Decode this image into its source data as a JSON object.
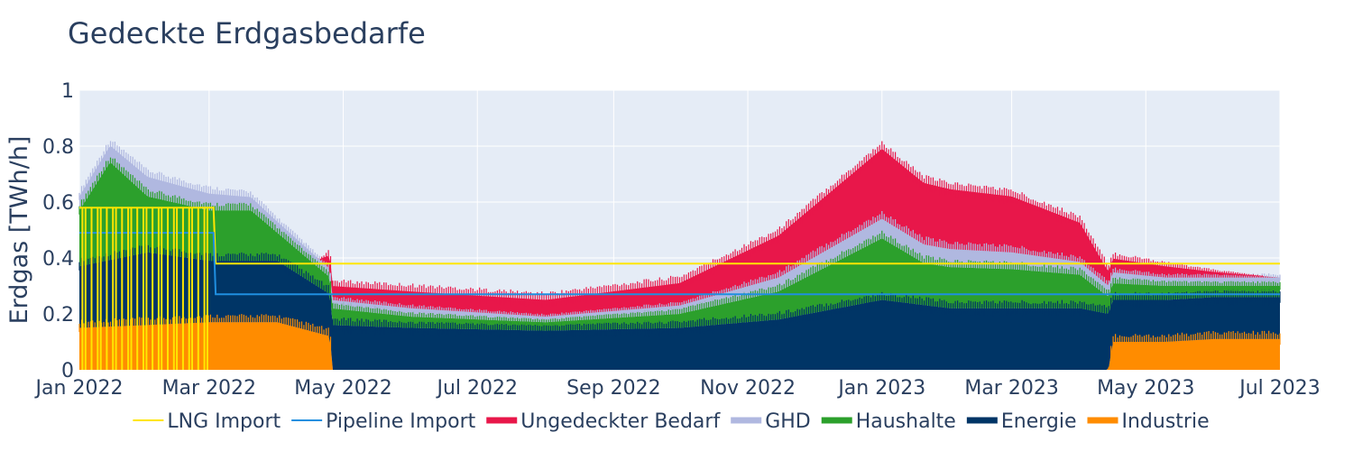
{
  "chart_data": {
    "type": "area",
    "title": "Gedeckte Erdgasbedarfe",
    "ylabel": "Erdgas [TWh/h]",
    "xlabel": "",
    "x_range": [
      "2022-01-01",
      "2023-07-01"
    ],
    "ylim": [
      0,
      1
    ],
    "x_ticks": [
      {
        "date": "2022-01-01",
        "label": "Jan 2022"
      },
      {
        "date": "2022-03-01",
        "label": "Mar 2022"
      },
      {
        "date": "2022-05-01",
        "label": "May 2022"
      },
      {
        "date": "2022-07-01",
        "label": "Jul 2022"
      },
      {
        "date": "2022-09-01",
        "label": "Sep 2022"
      },
      {
        "date": "2022-11-01",
        "label": "Nov 2022"
      },
      {
        "date": "2023-01-01",
        "label": "Jan 2023"
      },
      {
        "date": "2023-03-01",
        "label": "Mar 2023"
      },
      {
        "date": "2023-05-01",
        "label": "May 2023"
      },
      {
        "date": "2023-07-01",
        "label": "Jul 2023"
      }
    ],
    "y_ticks": [
      {
        "value": 0,
        "label": "0"
      },
      {
        "value": 0.2,
        "label": "0.2"
      },
      {
        "value": 0.4,
        "label": "0.4"
      },
      {
        "value": 0.6,
        "label": "0.6"
      },
      {
        "value": 0.8,
        "label": "0.8"
      },
      {
        "value": 1,
        "label": "1"
      }
    ],
    "grid": true,
    "legend_position": "bottom",
    "stacked_areas": [
      {
        "name": "Industrie",
        "color": "#ff8c00",
        "points": [
          [
            "2022-01-01",
            0.15
          ],
          [
            "2022-02-01",
            0.16
          ],
          [
            "2022-03-01",
            0.17
          ],
          [
            "2022-04-01",
            0.17
          ],
          [
            "2022-04-25",
            0.12
          ],
          [
            "2022-04-26",
            0.0
          ],
          [
            "2023-04-14",
            0.0
          ],
          [
            "2023-04-16",
            0.1
          ],
          [
            "2023-05-10",
            0.1
          ],
          [
            "2023-06-01",
            0.11
          ],
          [
            "2023-07-01",
            0.11
          ]
        ]
      },
      {
        "name": "Energie",
        "color": "#003566",
        "points": [
          [
            "2022-01-01",
            0.22
          ],
          [
            "2022-02-01",
            0.26
          ],
          [
            "2022-03-01",
            0.22
          ],
          [
            "2022-04-01",
            0.22
          ],
          [
            "2022-04-25",
            0.15
          ],
          [
            "2022-04-26",
            0.16
          ],
          [
            "2022-06-01",
            0.15
          ],
          [
            "2022-08-01",
            0.14
          ],
          [
            "2022-10-01",
            0.15
          ],
          [
            "2022-11-15",
            0.18
          ],
          [
            "2023-01-01",
            0.25
          ],
          [
            "2023-02-01",
            0.22
          ],
          [
            "2023-04-01",
            0.22
          ],
          [
            "2023-04-14",
            0.2
          ],
          [
            "2023-04-16",
            0.15
          ],
          [
            "2023-05-10",
            0.15
          ],
          [
            "2023-06-01",
            0.15
          ],
          [
            "2023-07-01",
            0.15
          ]
        ]
      },
      {
        "name": "Haushalte",
        "color": "#2ca02c",
        "points": [
          [
            "2022-01-01",
            0.2
          ],
          [
            "2022-01-15",
            0.35
          ],
          [
            "2022-02-01",
            0.2
          ],
          [
            "2022-03-01",
            0.18
          ],
          [
            "2022-03-20",
            0.18
          ],
          [
            "2022-04-01",
            0.1
          ],
          [
            "2022-04-25",
            0.06
          ],
          [
            "2022-06-01",
            0.04
          ],
          [
            "2022-08-01",
            0.03
          ],
          [
            "2022-10-01",
            0.05
          ],
          [
            "2022-11-15",
            0.1
          ],
          [
            "2023-01-01",
            0.22
          ],
          [
            "2023-01-20",
            0.15
          ],
          [
            "2023-03-01",
            0.14
          ],
          [
            "2023-04-01",
            0.12
          ],
          [
            "2023-04-14",
            0.06
          ],
          [
            "2023-05-10",
            0.05
          ],
          [
            "2023-06-01",
            0.04
          ],
          [
            "2023-07-01",
            0.04
          ]
        ]
      },
      {
        "name": "GHD",
        "color": "#b0b8e0",
        "points": [
          [
            "2022-01-01",
            0.05
          ],
          [
            "2022-02-01",
            0.07
          ],
          [
            "2022-03-01",
            0.06
          ],
          [
            "2022-04-01",
            0.04
          ],
          [
            "2022-04-25",
            0.03
          ],
          [
            "2022-06-01",
            0.03
          ],
          [
            "2022-08-01",
            0.02
          ],
          [
            "2022-10-01",
            0.03
          ],
          [
            "2022-11-15",
            0.05
          ],
          [
            "2023-01-01",
            0.07
          ],
          [
            "2023-03-01",
            0.06
          ],
          [
            "2023-04-14",
            0.04
          ],
          [
            "2023-05-10",
            0.03
          ],
          [
            "2023-07-01",
            0.03
          ]
        ]
      },
      {
        "name": "Ungedeckter Bedarf",
        "color": "#e8174a",
        "points": [
          [
            "2022-01-01",
            0.0
          ],
          [
            "2022-04-20",
            0.0
          ],
          [
            "2022-04-25",
            0.05
          ],
          [
            "2022-06-01",
            0.06
          ],
          [
            "2022-08-01",
            0.06
          ],
          [
            "2022-10-01",
            0.08
          ],
          [
            "2022-11-15",
            0.15
          ],
          [
            "2023-01-01",
            0.25
          ],
          [
            "2023-01-20",
            0.22
          ],
          [
            "2023-03-01",
            0.2
          ],
          [
            "2023-04-01",
            0.14
          ],
          [
            "2023-04-14",
            0.05
          ],
          [
            "2023-05-10",
            0.04
          ],
          [
            "2023-06-01",
            0.02
          ],
          [
            "2023-07-01",
            0.0
          ]
        ]
      }
    ],
    "lines": [
      {
        "name": "LNG Import",
        "color": "#ffe600",
        "points": [
          [
            "2022-01-01",
            0.58
          ],
          [
            "2022-03-03",
            0.58
          ],
          [
            "2022-03-04",
            0.38
          ],
          [
            "2023-07-01",
            0.38
          ]
        ]
      },
      {
        "name": "Pipeline Import",
        "color": "#1f8fe0",
        "points": [
          [
            "2022-01-01",
            0.49
          ],
          [
            "2022-03-03",
            0.49
          ],
          [
            "2022-03-04",
            0.27
          ],
          [
            "2023-07-01",
            0.27
          ]
        ]
      }
    ],
    "legend_order": [
      "LNG Import",
      "Pipeline Import",
      "Ungedeckter Bedarf",
      "GHD",
      "Haushalte",
      "Energie",
      "Industrie"
    ],
    "legend_styles": {
      "LNG Import": "line",
      "Pipeline Import": "line",
      "Ungedeckter Bedarf": "area",
      "GHD": "area",
      "Haushalte": "area",
      "Energie": "area",
      "Industrie": "area"
    },
    "colors": {
      "plot_background": "#e5ecf6",
      "grid": "#ffffff",
      "text": "#2a3f5f"
    }
  }
}
